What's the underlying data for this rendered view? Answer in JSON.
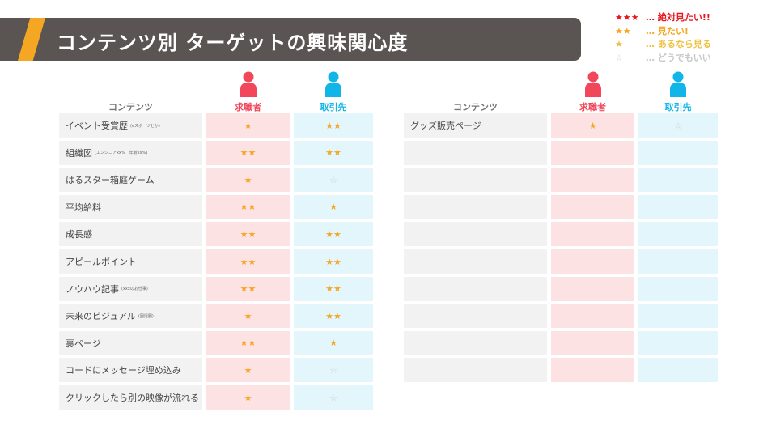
{
  "title": "コンテンツ別 ターゲットの興味関心度",
  "legend": [
    {
      "stars": "★★★",
      "text": "… 絶対見たい!!",
      "color": "#e8141e"
    },
    {
      "stars": "★★",
      "text": "… 見たい!",
      "color": "#f5a623"
    },
    {
      "stars": "★",
      "text": "… あるなら見る",
      "color": "#f0c040"
    },
    {
      "stars": "☆",
      "text": "… どうでもいい",
      "color": "#c8c8c8"
    }
  ],
  "headers": {
    "content": "コンテンツ",
    "seeker": "求職者",
    "client": "取引先"
  },
  "colors": {
    "seeker": "#f2475a",
    "client": "#12b5e8"
  },
  "left_rows": [
    {
      "name": "イベント受賞歴",
      "note": "(eスポーツとか)",
      "seeker": "★",
      "client": "★★"
    },
    {
      "name": "組織図",
      "note": "(エンジニアxx%　年齢xx%)",
      "seeker": "★★",
      "client": "★★"
    },
    {
      "name": "はるスター箱庭ゲーム",
      "note": "",
      "seeker": "★",
      "client": "☆"
    },
    {
      "name": "平均給料",
      "note": "",
      "seeker": "★★",
      "client": "★"
    },
    {
      "name": "成長感",
      "note": "",
      "seeker": "★★",
      "client": "★★"
    },
    {
      "name": "アピールポイント",
      "note": "",
      "seeker": "★★",
      "client": "★★"
    },
    {
      "name": "ノウハウ記事",
      "note": "(xxxのお仕事)",
      "seeker": "★★",
      "client": "★★"
    },
    {
      "name": "未来のビジュアル",
      "note": "(園児服)",
      "seeker": "★",
      "client": "★★"
    },
    {
      "name": "裏ページ",
      "note": "",
      "seeker": "★★",
      "client": "★"
    },
    {
      "name": "コードにメッセージ埋め込み",
      "note": "",
      "seeker": "★",
      "client": "☆"
    },
    {
      "name": "クリックしたら別の映像が流れる",
      "note": "",
      "seeker": "★",
      "client": "☆"
    }
  ],
  "right_rows": [
    {
      "name": "グッズ販売ページ",
      "note": "",
      "seeker": "★",
      "client": "☆"
    },
    {
      "name": "",
      "note": "",
      "seeker": "",
      "client": ""
    },
    {
      "name": "",
      "note": "",
      "seeker": "",
      "client": ""
    },
    {
      "name": "",
      "note": "",
      "seeker": "",
      "client": ""
    },
    {
      "name": "",
      "note": "",
      "seeker": "",
      "client": ""
    },
    {
      "name": "",
      "note": "",
      "seeker": "",
      "client": ""
    },
    {
      "name": "",
      "note": "",
      "seeker": "",
      "client": ""
    },
    {
      "name": "",
      "note": "",
      "seeker": "",
      "client": ""
    },
    {
      "name": "",
      "note": "",
      "seeker": "",
      "client": ""
    },
    {
      "name": "",
      "note": "",
      "seeker": "",
      "client": ""
    }
  ]
}
